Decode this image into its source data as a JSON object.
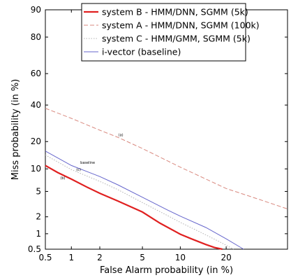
{
  "chart_data": {
    "type": "line",
    "title": "",
    "xlabel": "False Alarm probability (in %)",
    "ylabel": "Miss probability (in %)",
    "scale": "normal-deviate (DET)",
    "xlim": [
      0.5,
      40
    ],
    "ylim": [
      0.5,
      90
    ],
    "grid": false,
    "legend_position": "top-right",
    "xticks": [
      {
        "value": 0.5,
        "label": "0.5"
      },
      {
        "value": 1,
        "label": "1"
      },
      {
        "value": 2,
        "label": "2"
      },
      {
        "value": 5,
        "label": "5"
      },
      {
        "value": 10,
        "label": "10"
      },
      {
        "value": 20,
        "label": "20"
      }
    ],
    "yticks": [
      {
        "value": 0.5,
        "label": "0.5"
      },
      {
        "value": 1,
        "label": "1"
      },
      {
        "value": 2,
        "label": "2"
      },
      {
        "value": 5,
        "label": "5"
      },
      {
        "value": 10,
        "label": "10"
      },
      {
        "value": 20,
        "label": "20"
      },
      {
        "value": 40,
        "label": "40"
      },
      {
        "value": 60,
        "label": "60"
      },
      {
        "value": 80,
        "label": "80"
      },
      {
        "value": 90,
        "label": "90"
      }
    ],
    "series": [
      {
        "name": "system B - HMM/DNN, SGMM (5k)",
        "color": "#e02020",
        "dash": "solid",
        "width": 2.2,
        "points": [
          [
            0.5,
            11
          ],
          [
            0.7,
            9
          ],
          [
            1,
            7.4
          ],
          [
            1.5,
            5.7
          ],
          [
            2,
            4.7
          ],
          [
            3,
            3.6
          ],
          [
            5,
            2.4
          ],
          [
            7,
            1.55
          ],
          [
            10,
            0.98
          ],
          [
            12,
            0.8
          ],
          [
            15,
            0.62
          ],
          [
            17,
            0.54
          ],
          [
            19,
            0.5
          ]
        ]
      },
      {
        "name": "system A - HMM/DNN, SGMM (100k)",
        "color": "#d9897f",
        "dash": "dashed",
        "width": 1,
        "points": [
          [
            0.5,
            38
          ],
          [
            1,
            32
          ],
          [
            2,
            25.5
          ],
          [
            3,
            22
          ],
          [
            5,
            17
          ],
          [
            10,
            10.5
          ],
          [
            20,
            5.5
          ],
          [
            30,
            3.8
          ],
          [
            40,
            2.7
          ]
        ]
      },
      {
        "name": "system C - HMM/GMM, SGMM (5k)",
        "color": "#b3b3b3",
        "dash": "dotted",
        "width": 1,
        "points": [
          [
            0.5,
            14.5
          ],
          [
            1,
            9.8
          ],
          [
            2,
            6.9
          ],
          [
            3,
            5.3
          ],
          [
            5,
            3.4
          ],
          [
            8,
            2.1
          ],
          [
            10,
            1.6
          ],
          [
            14,
            1.05
          ],
          [
            18,
            0.72
          ],
          [
            20,
            0.6
          ],
          [
            22,
            0.5
          ]
        ]
      },
      {
        "name": "i-vector (baseline)",
        "color": "#6666cc",
        "dash": "solid",
        "width": 1,
        "points": [
          [
            0.5,
            16
          ],
          [
            1,
            11
          ],
          [
            2,
            8
          ],
          [
            3,
            6.2
          ],
          [
            5,
            4.1
          ],
          [
            8,
            2.6
          ],
          [
            10,
            2.05
          ],
          [
            15,
            1.3
          ],
          [
            20,
            0.8
          ],
          [
            25,
            0.5
          ]
        ]
      }
    ],
    "annotations": [
      {
        "text": "(a)",
        "x": 3.2,
        "y": 22.5
      },
      {
        "text": "baseline",
        "x": 1.5,
        "y": 11.5
      },
      {
        "text": "(c)",
        "x": 1.2,
        "y": 9.5
      },
      {
        "text": "(b)",
        "x": 0.8,
        "y": 7.4
      }
    ]
  }
}
